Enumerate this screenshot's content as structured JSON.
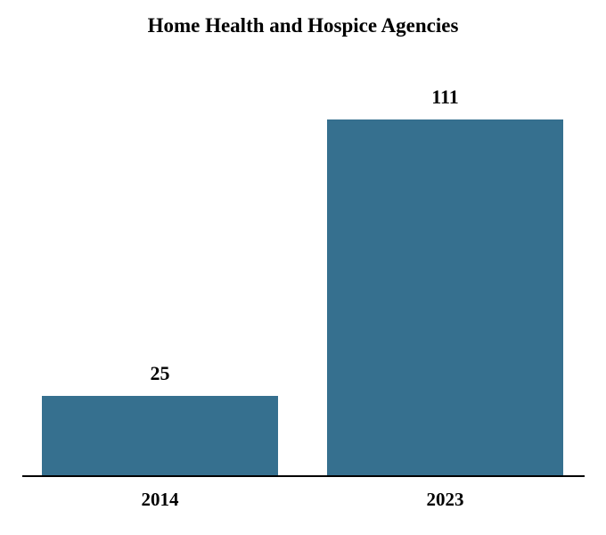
{
  "chart_data": {
    "type": "bar",
    "title": "Home Health and Hospice Agencies",
    "categories": [
      "2014",
      "2023"
    ],
    "values": [
      25,
      111
    ],
    "value_labels": [
      "25",
      "111"
    ],
    "xlabel": "",
    "ylabel": "",
    "ylim": [
      0,
      120
    ],
    "grid": false,
    "legend": "none",
    "bar_color": "#36708F",
    "axis_color": "#000000",
    "background_color": "#FFFFFF"
  }
}
